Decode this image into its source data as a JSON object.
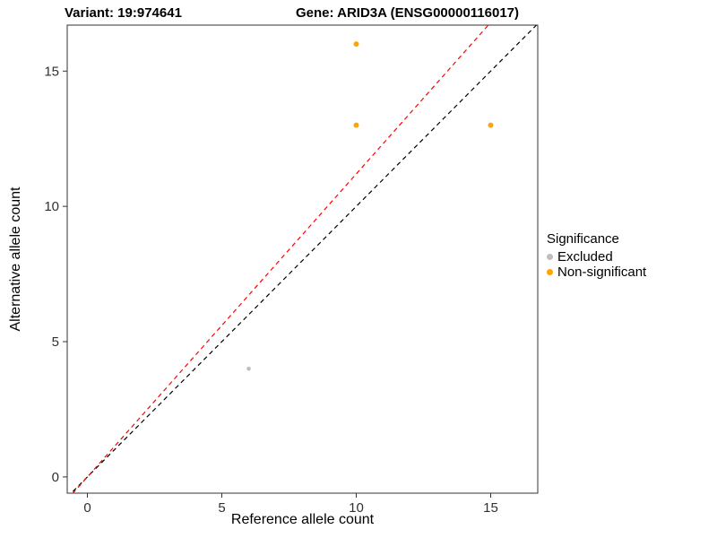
{
  "chart_data": {
    "type": "scatter",
    "titles": {
      "variant": "Variant: 19:974641",
      "gene": "Gene: ARID3A (ENSG00000116017)"
    },
    "xlabel": "Reference allele count",
    "ylabel": "Alternative allele count",
    "xlim": [
      -0.75,
      16.75
    ],
    "ylim": [
      -0.6,
      16.7
    ],
    "xticks": [
      0,
      5,
      10,
      15
    ],
    "yticks": [
      0,
      5,
      10,
      15
    ],
    "grid": false,
    "series": [
      {
        "name": "Excluded",
        "color": "#BEBEBE",
        "point_radius": 2.3,
        "points": [
          {
            "x": 6,
            "y": 4
          }
        ]
      },
      {
        "name": "Non-significant",
        "color": "#FFA500",
        "point_radius": 3,
        "points": [
          {
            "x": 10,
            "y": 16
          },
          {
            "x": 10,
            "y": 13
          },
          {
            "x": 15,
            "y": 13
          }
        ]
      }
    ],
    "abline": [
      {
        "name": "identity-line",
        "slope": 1,
        "intercept": 0,
        "color": "#000000",
        "dash": "5 4"
      },
      {
        "name": "expected-ratio-line",
        "slope": 1.12,
        "intercept": 0,
        "color": "#FF0000",
        "dash": "5 4"
      }
    ],
    "legend": {
      "title": "Significance",
      "position": "right",
      "items": [
        {
          "label": "Excluded",
          "color": "#BEBEBE"
        },
        {
          "label": "Non-significant",
          "color": "#FFA500"
        }
      ]
    },
    "axis": {
      "tick_color": "#333333",
      "border_color": "#333333",
      "label_color": "#303030"
    }
  }
}
